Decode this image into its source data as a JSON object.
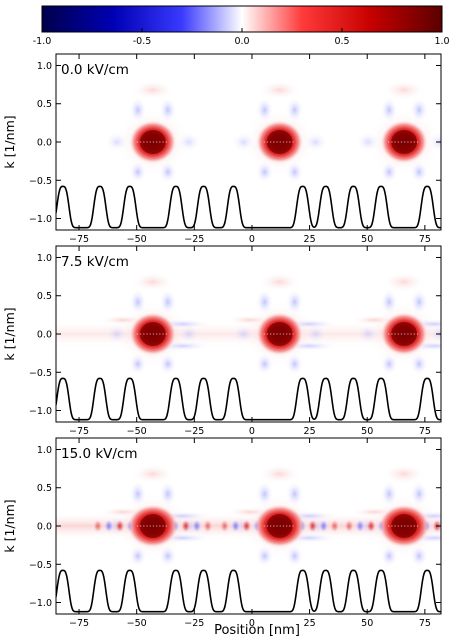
{
  "chart_data": {
    "type": "heatmap",
    "colorbar": {
      "ticks": [
        "-1.0",
        "-0.5",
        "0.0",
        "0.5",
        "1.0"
      ],
      "range": [
        -1.0,
        1.0
      ],
      "colormap": "seismic",
      "colors": {
        "negative": "#00007f",
        "zero": "#ffffff",
        "positive": "#7f0000"
      }
    },
    "xlabel": "Position [nm]",
    "ylabel": "k [1/nm]",
    "xlim": [
      -85,
      82
    ],
    "ylim": [
      -1.15,
      1.15
    ],
    "xticks": [
      "−75",
      "−50",
      "−25",
      "0",
      "25",
      "50",
      "75"
    ],
    "yticks": [
      "−1.0",
      "−0.5",
      "0.0",
      "0.5",
      "1.0"
    ],
    "potential_peaks_x": [
      -82,
      -66,
      -53,
      -33,
      -21,
      -8,
      22,
      32,
      44,
      56,
      76
    ],
    "blob_centers_x": [
      -43,
      12,
      66
    ],
    "panels": [
      {
        "label": "0.0 kV/cm",
        "field": 0.0
      },
      {
        "label": "7.5 kV/cm",
        "field": 7.5
      },
      {
        "label": "15.0 kV/cm",
        "field": 15.0
      }
    ]
  }
}
